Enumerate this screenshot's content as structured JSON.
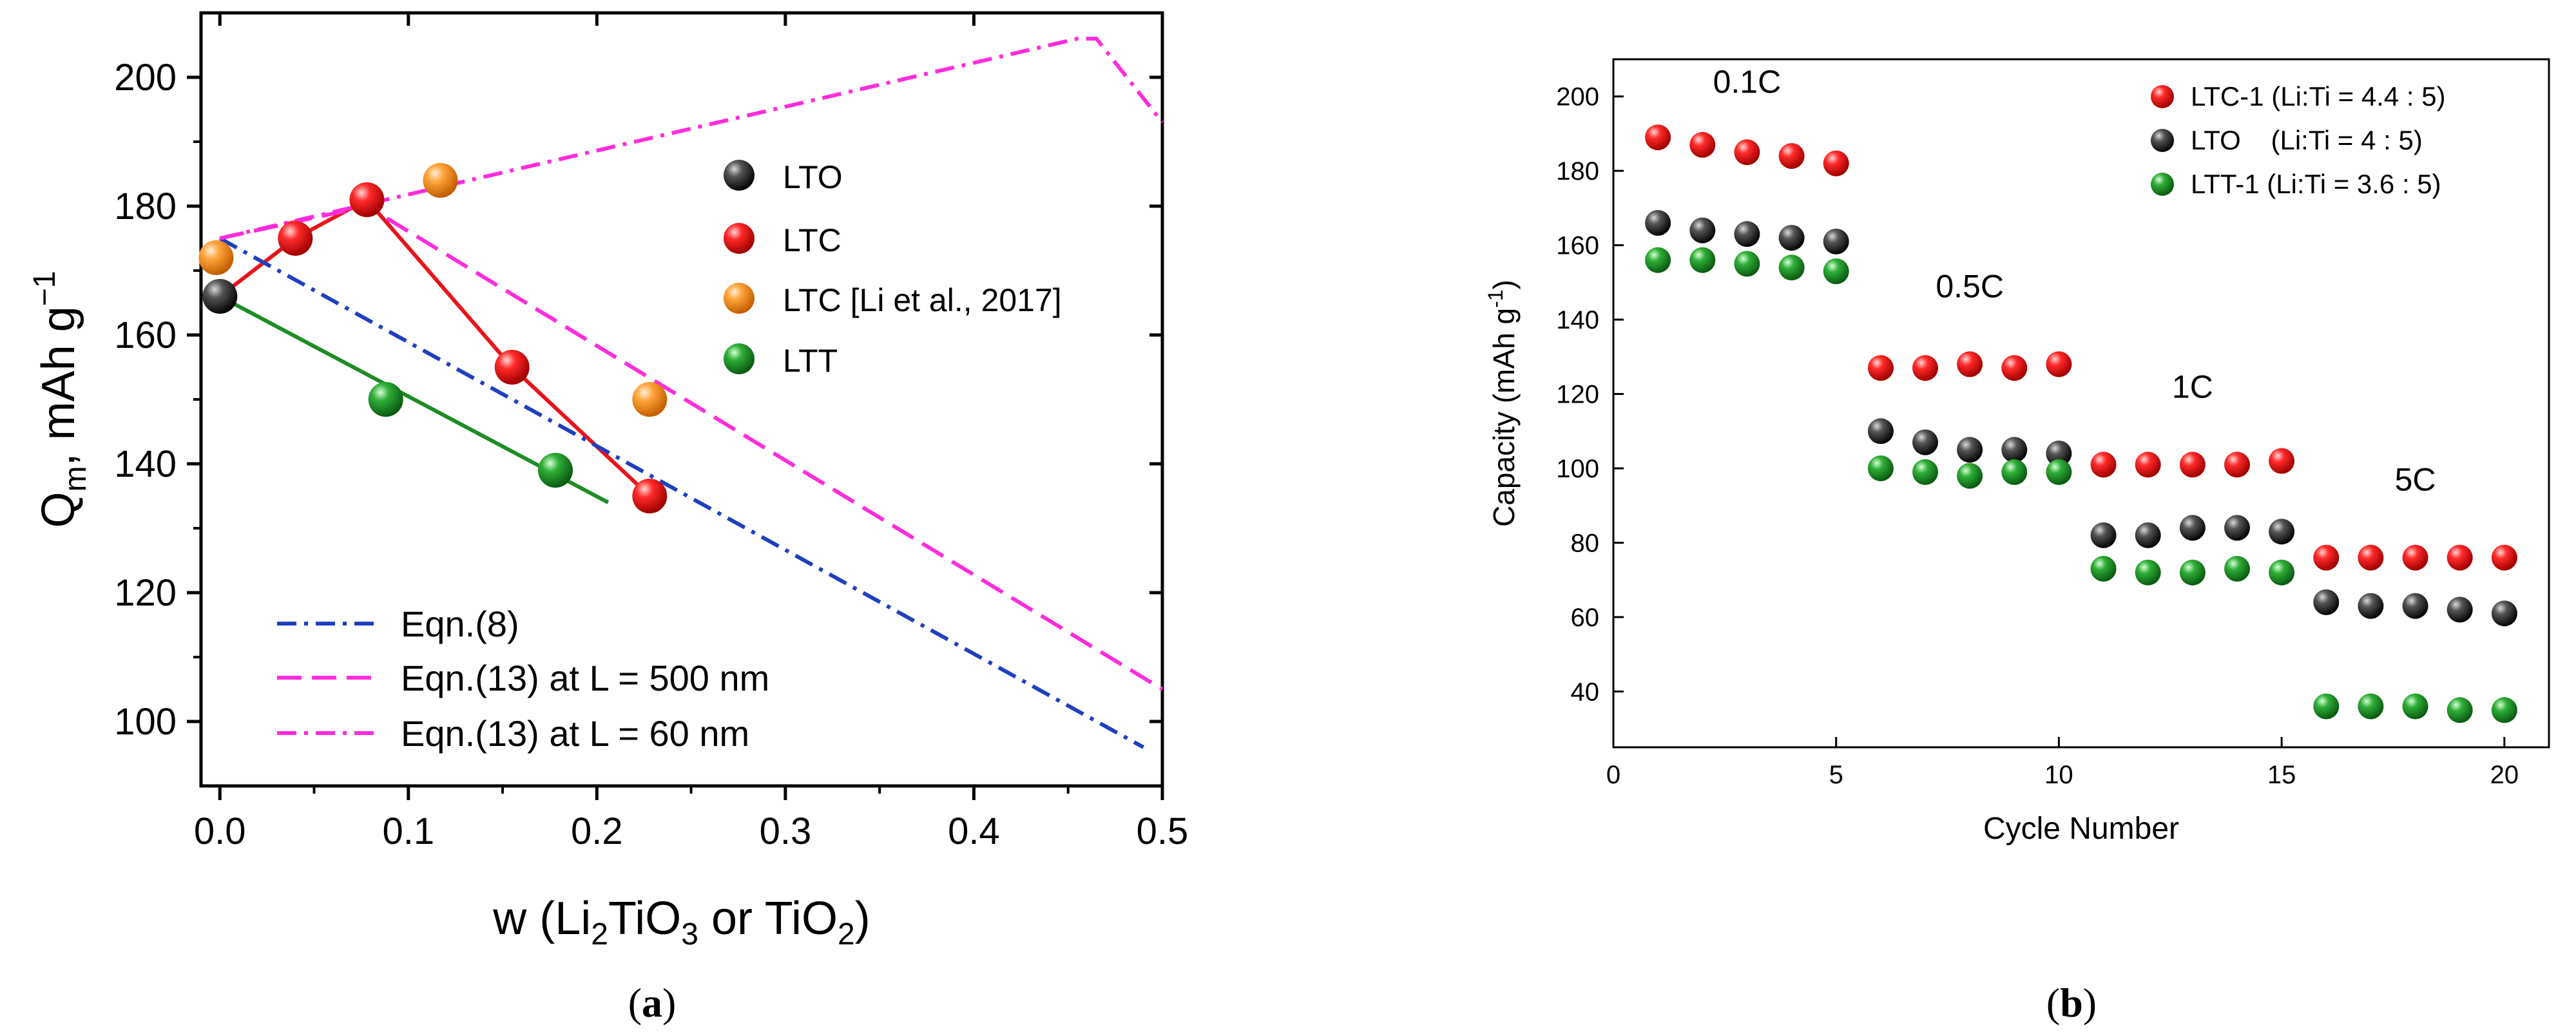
{
  "chart_data": [
    {
      "panel_label": "(a)",
      "panel_letter": "a",
      "type": "line",
      "xlabel": {
        "prefix": "w (Li",
        "sub1": "2",
        "mid": "TiO",
        "sub2": "3",
        "suffix": " or TiO",
        "sub3": "2",
        "end": ")"
      },
      "ylabel": {
        "prefix": "Q",
        "sub": "m",
        "suffix": ", mAh g",
        "sup": "−1"
      },
      "xlim": [
        -0.01,
        0.5
      ],
      "ylim": [
        90,
        210
      ],
      "xticks": [
        0.0,
        0.1,
        0.2,
        0.3,
        0.4,
        0.5
      ],
      "xtick_labels": [
        "0.0",
        "0.1",
        "0.2",
        "0.3",
        "0.4",
        "0.5"
      ],
      "yticks": [
        100,
        120,
        140,
        160,
        180,
        200
      ],
      "ytick_labels": [
        "100",
        "120",
        "140",
        "160",
        "180",
        "200"
      ],
      "scatter_series": [
        {
          "name": "LTO",
          "color": "#1a1a1a",
          "points": [
            [
              0.0,
              166
            ]
          ]
        },
        {
          "name": "LTC",
          "color": "#e8141b",
          "points": [
            [
              0.04,
              175
            ],
            [
              0.078,
              181
            ],
            [
              0.155,
              155
            ],
            [
              0.228,
              135
            ]
          ]
        },
        {
          "name": "LTC [Li et al., 2017]",
          "color": "#f7931e",
          "points": [
            [
              -0.002,
              172
            ],
            [
              0.117,
              184
            ],
            [
              0.228,
              150
            ]
          ]
        },
        {
          "name": "LTT",
          "color": "#1e8c26",
          "points": [
            [
              0.088,
              150
            ],
            [
              0.178,
              139
            ]
          ]
        }
      ],
      "line_series": [
        {
          "name": "LTC connector",
          "color": "#e8141b",
          "style": "solid",
          "points": [
            [
              0.0,
              166
            ],
            [
              0.04,
              175
            ],
            [
              0.078,
              181
            ],
            [
              0.155,
              155
            ],
            [
              0.228,
              135
            ]
          ]
        },
        {
          "name": "LTT fit",
          "color": "#1e8c26",
          "style": "solid",
          "points": [
            [
              0.0,
              166
            ],
            [
              0.206,
              134
            ]
          ]
        },
        {
          "name": "Eqn.(8)",
          "color": "#1f3fbf",
          "style": "dashdot",
          "points": [
            [
              0.0,
              175
            ],
            [
              0.49,
              96
            ]
          ]
        },
        {
          "name": "Eqn.(13) at L = 500 nm",
          "color": "#ff2cdc",
          "style": "dash",
          "points": [
            [
              0.0,
              175
            ],
            [
              0.078,
              180
            ],
            [
              0.5,
              105
            ]
          ]
        },
        {
          "name": "Eqn.(13) at L = 60 nm",
          "color": "#ff2cdc",
          "style": "dashdot",
          "points": [
            [
              0.0,
              175
            ],
            [
              0.455,
              206
            ],
            [
              0.465,
              206
            ],
            [
              0.5,
              193
            ]
          ]
        }
      ],
      "scatter_legend": [
        "LTO",
        "LTC",
        "LTC [Li et al., 2017]",
        "LTT"
      ],
      "line_legend": [
        "Eqn.(8)",
        "Eqn.(13) at L = 500 nm",
        "Eqn.(13) at L = 60 nm"
      ],
      "legend_placement": "scatter legend upper-right, line legend lower-left"
    },
    {
      "panel_label": "(b)",
      "panel_letter": "b",
      "type": "scatter",
      "xlabel": "Cycle Number",
      "ylabel": {
        "prefix": "Capacity (mAh g",
        "sup": "-1",
        "suffix": ")"
      },
      "xlim": [
        0,
        21
      ],
      "ylim": [
        25,
        210
      ],
      "xticks": [
        0,
        5,
        10,
        15,
        20
      ],
      "xtick_labels": [
        "0",
        "5",
        "10",
        "15",
        "20"
      ],
      "yticks": [
        40,
        60,
        80,
        100,
        120,
        140,
        160,
        180,
        200
      ],
      "ytick_labels": [
        "40",
        "60",
        "80",
        "100",
        "120",
        "140",
        "160",
        "180",
        "200"
      ],
      "x": [
        1,
        2,
        3,
        4,
        5,
        6,
        7,
        8,
        9,
        10,
        11,
        12,
        13,
        14,
        15,
        16,
        17,
        18,
        19,
        20
      ],
      "series": [
        {
          "name": "LTC-1 (Li:Ti = 4.4 : 5)",
          "color": "#e8141b",
          "values": [
            189,
            187,
            185,
            184,
            182,
            127,
            127,
            128,
            127,
            128,
            101,
            101,
            101,
            101,
            102,
            76,
            76,
            76,
            76,
            76
          ]
        },
        {
          "name": "LTO    (Li:Ti = 4 : 5)",
          "color": "#1a1a1a",
          "values": [
            166,
            164,
            163,
            162,
            161,
            110,
            107,
            105,
            105,
            104,
            82,
            82,
            84,
            84,
            83,
            64,
            63,
            63,
            62,
            61
          ]
        },
        {
          "name": "LTT-1 (Li:Ti = 3.6 : 5)",
          "color": "#1e8c26",
          "values": [
            156,
            156,
            155,
            154,
            153,
            100,
            99,
            98,
            99,
            99,
            73,
            72,
            72,
            73,
            72,
            36,
            36,
            36,
            35,
            35
          ]
        }
      ],
      "annotations": [
        {
          "text": "0.1C",
          "x": 3,
          "y": 201
        },
        {
          "text": "0.5C",
          "x": 8,
          "y": 146
        },
        {
          "text": "1C",
          "x": 13,
          "y": 119
        },
        {
          "text": "5C",
          "x": 18,
          "y": 94
        }
      ],
      "legend_placement": "top-right"
    }
  ]
}
